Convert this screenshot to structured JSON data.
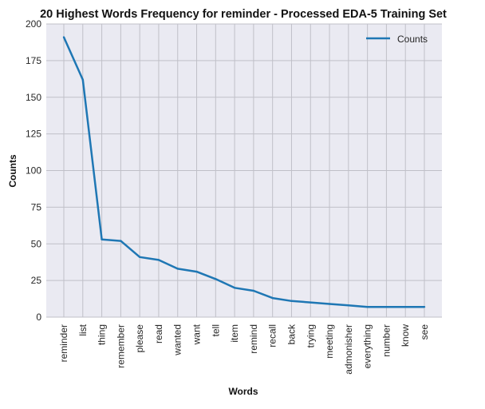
{
  "chart_data": {
    "type": "line",
    "title": "20 Highest Words Frequency for reminder - Processed EDA-5 Training Set",
    "xlabel": "Words",
    "ylabel": "Counts",
    "categories": [
      "reminder",
      "list",
      "thing",
      "remember",
      "please",
      "read",
      "wanted",
      "want",
      "tell",
      "item",
      "remind",
      "recall",
      "back",
      "trying",
      "meeting",
      "admonisher",
      "everything",
      "number",
      "know",
      "see"
    ],
    "series": [
      {
        "name": "Counts",
        "values": [
          191,
          162,
          53,
          52,
          41,
          39,
          33,
          31,
          26,
          20,
          18,
          13,
          11,
          10,
          9,
          8,
          7,
          7,
          7,
          7
        ]
      }
    ],
    "ylim": [
      0,
      200
    ],
    "yticks": [
      0,
      25,
      50,
      75,
      100,
      125,
      150,
      175,
      200
    ],
    "grid": true,
    "legend": "top-right",
    "colors": {
      "line": "#1f77b4",
      "plot_bg": "#eaeaf2",
      "grid": "#c0c0c8"
    }
  }
}
